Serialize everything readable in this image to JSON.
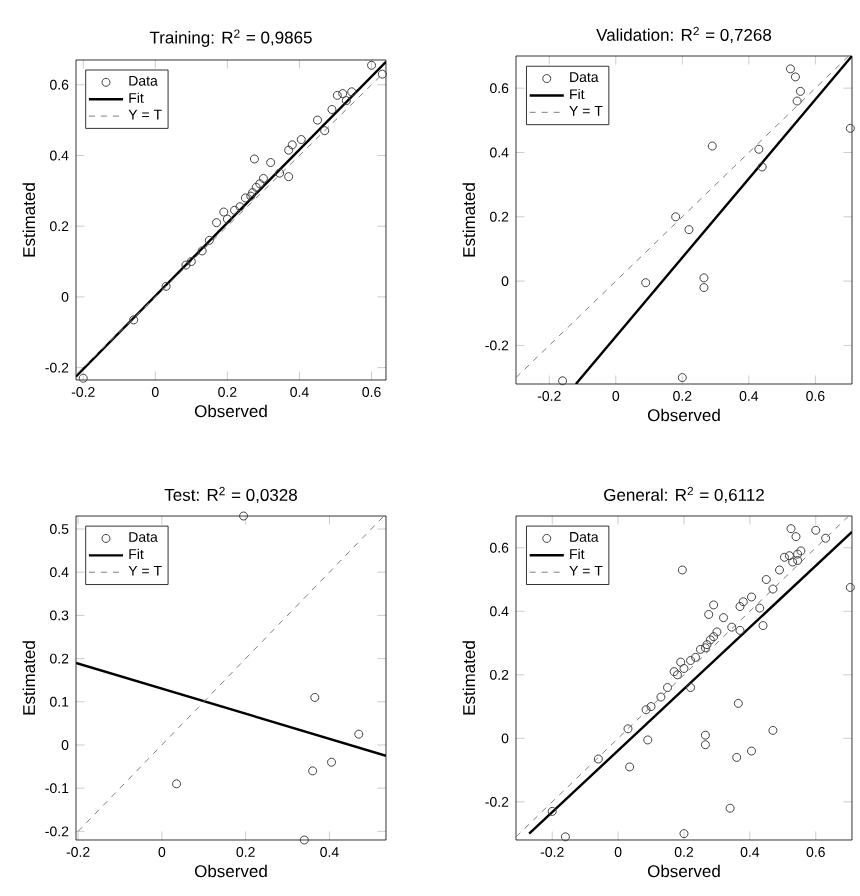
{
  "chart_data": [
    {
      "type": "scatter",
      "title": "Training: R$^{2}$ = 0,9865",
      "xlabel": "Observed",
      "ylabel": "Estimated",
      "xlim": [
        -0.22,
        0.64
      ],
      "ylim": [
        -0.235,
        0.67
      ],
      "xticks": [
        -0.2,
        0,
        0.2,
        0.4,
        0.6
      ],
      "yticks": [
        -0.2,
        0,
        0.2,
        0.4,
        0.6
      ],
      "legend": "top left",
      "series": [
        {
          "name": "Data",
          "marker": "circle",
          "color": "#404040",
          "x": [
            -0.2,
            -0.06,
            0.03,
            0.085,
            0.1,
            0.13,
            0.15,
            0.17,
            0.19,
            0.2,
            0.22,
            0.235,
            0.25,
            0.265,
            0.27,
            0.275,
            0.28,
            0.29,
            0.3,
            0.32,
            0.345,
            0.37,
            0.37,
            0.38,
            0.405,
            0.45,
            0.47,
            0.49,
            0.505,
            0.52,
            0.53,
            0.545,
            0.6,
            0.63
          ],
          "values": [
            -0.23,
            -0.065,
            0.03,
            0.09,
            0.1,
            0.13,
            0.16,
            0.21,
            0.24,
            0.22,
            0.245,
            0.255,
            0.28,
            0.285,
            0.295,
            0.39,
            0.31,
            0.32,
            0.335,
            0.38,
            0.35,
            0.34,
            0.415,
            0.43,
            0.445,
            0.5,
            0.47,
            0.53,
            0.57,
            0.575,
            0.555,
            0.58,
            0.655,
            0.63
          ]
        },
        {
          "name": "Fit",
          "type": "line",
          "marker": "none",
          "line_style": "solid",
          "color": "#000000",
          "x": [
            -0.22,
            0.64
          ],
          "values": [
            -0.225,
            0.665
          ]
        },
        {
          "name": "Y = T",
          "type": "line",
          "marker": "none",
          "line_style": "dashed",
          "color": "#808080",
          "x": [
            -0.22,
            0.64
          ],
          "values": [
            -0.22,
            0.64
          ]
        }
      ]
    },
    {
      "type": "scatter",
      "title": "Validation: R$^{2}$ = 0,7268",
      "xlabel": "Observed",
      "ylabel": "Estimated",
      "xlim": [
        -0.3,
        0.71
      ],
      "ylim": [
        -0.32,
        0.7
      ],
      "xticks": [
        -0.2,
        0,
        0.2,
        0.4,
        0.6
      ],
      "yticks": [
        -0.2,
        0,
        0.2,
        0.4,
        0.6
      ],
      "legend": "top left",
      "series": [
        {
          "name": "Data",
          "marker": "circle",
          "color": "#404040",
          "x": [
            -0.16,
            0.09,
            0.18,
            0.22,
            0.2,
            0.265,
            0.265,
            0.29,
            0.43,
            0.44,
            0.525,
            0.54,
            0.555,
            0.545,
            0.705
          ],
          "values": [
            -0.31,
            -0.005,
            0.2,
            0.16,
            -0.3,
            0.01,
            -0.02,
            0.42,
            0.41,
            0.355,
            0.66,
            0.635,
            0.59,
            0.56,
            0.475
          ]
        },
        {
          "name": "Fit",
          "type": "line",
          "marker": "none",
          "line_style": "solid",
          "color": "#000000",
          "x": [
            -0.12,
            0.71
          ],
          "values": [
            -0.32,
            0.7
          ]
        },
        {
          "name": "Y = T",
          "type": "line",
          "marker": "none",
          "line_style": "dashed",
          "color": "#808080",
          "x": [
            -0.3,
            0.7
          ],
          "values": [
            -0.3,
            0.7
          ]
        }
      ]
    },
    {
      "type": "scatter",
      "title": "Test: R$^{2}$ = 0,0328",
      "xlabel": "Observed",
      "ylabel": "Estimated",
      "xlim": [
        -0.205,
        0.535
      ],
      "ylim": [
        -0.22,
        0.53
      ],
      "xticks": [
        -0.2,
        0,
        0.2,
        0.4
      ],
      "yticks": [
        -0.2,
        -0.1,
        0,
        0.1,
        0.2,
        0.3,
        0.4,
        0.5
      ],
      "legend": "top left",
      "series": [
        {
          "name": "Data",
          "marker": "circle",
          "color": "#404040",
          "x": [
            0.195,
            0.035,
            0.365,
            0.36,
            0.405,
            0.47,
            0.34
          ],
          "values": [
            0.53,
            -0.09,
            0.11,
            -0.06,
            -0.04,
            0.025,
            -0.22
          ]
        },
        {
          "name": "Fit",
          "type": "line",
          "marker": "none",
          "line_style": "solid",
          "color": "#000000",
          "x": [
            -0.205,
            0.535
          ],
          "values": [
            0.19,
            -0.025
          ]
        },
        {
          "name": "Y = T",
          "type": "line",
          "marker": "none",
          "line_style": "dashed",
          "color": "#808080",
          "x": [
            -0.2,
            0.53
          ],
          "values": [
            -0.2,
            0.53
          ]
        }
      ]
    },
    {
      "type": "scatter",
      "title": "General: R$^{2}$ = 0,6112",
      "xlabel": "Observed",
      "ylabel": "Estimated",
      "xlim": [
        -0.31,
        0.71
      ],
      "ylim": [
        -0.32,
        0.7
      ],
      "xticks": [
        -0.2,
        0,
        0.2,
        0.4,
        0.6
      ],
      "yticks": [
        -0.2,
        0,
        0.2,
        0.4,
        0.6
      ],
      "legend": "top left",
      "series": [
        {
          "name": "Data",
          "marker": "circle",
          "color": "#404040",
          "x": [
            -0.2,
            -0.06,
            0.03,
            0.085,
            0.1,
            0.13,
            0.15,
            0.17,
            0.19,
            0.2,
            0.22,
            0.235,
            0.25,
            0.265,
            0.27,
            0.275,
            0.28,
            0.29,
            0.3,
            0.32,
            0.345,
            0.37,
            0.37,
            0.38,
            0.405,
            0.45,
            0.47,
            0.49,
            0.505,
            0.52,
            0.53,
            0.545,
            0.6,
            0.63,
            -0.16,
            0.09,
            0.18,
            0.22,
            0.2,
            0.265,
            0.265,
            0.29,
            0.43,
            0.44,
            0.525,
            0.54,
            0.555,
            0.545,
            0.705,
            0.195,
            0.035,
            0.365,
            0.36,
            0.405,
            0.47,
            0.34
          ],
          "values": [
            -0.23,
            -0.065,
            0.03,
            0.09,
            0.1,
            0.13,
            0.16,
            0.21,
            0.24,
            0.22,
            0.245,
            0.255,
            0.28,
            0.285,
            0.295,
            0.39,
            0.31,
            0.32,
            0.335,
            0.38,
            0.35,
            0.34,
            0.415,
            0.43,
            0.445,
            0.5,
            0.47,
            0.53,
            0.57,
            0.575,
            0.555,
            0.58,
            0.655,
            0.63,
            -0.31,
            -0.005,
            0.2,
            0.16,
            -0.3,
            0.01,
            -0.02,
            0.42,
            0.41,
            0.355,
            0.66,
            0.635,
            0.59,
            0.56,
            0.475,
            0.53,
            -0.09,
            0.11,
            -0.06,
            -0.04,
            0.025,
            -0.22
          ]
        },
        {
          "name": "Fit",
          "type": "line",
          "marker": "none",
          "line_style": "solid",
          "color": "#000000",
          "x": [
            -0.27,
            0.71
          ],
          "values": [
            -0.3,
            0.65
          ]
        },
        {
          "name": "Y = T",
          "type": "line",
          "marker": "none",
          "line_style": "dashed",
          "color": "#808080",
          "x": [
            -0.31,
            0.7
          ],
          "values": [
            -0.31,
            0.7
          ]
        }
      ]
    }
  ]
}
